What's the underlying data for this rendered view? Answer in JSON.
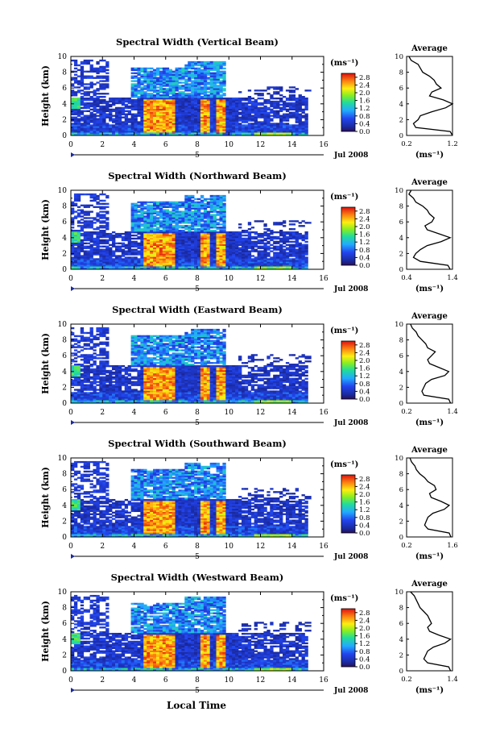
{
  "figure": {
    "xlabel": "Local Time",
    "date_label": "Jul 2008",
    "colorbar_unit": "(ms⁻¹)",
    "colorbar_ticks": [
      "0.0",
      "0.4",
      "0.8",
      "1.2",
      "1.6",
      "2.0",
      "2.4",
      "2.8"
    ],
    "x_ticks": [
      "0",
      "2",
      "4",
      "6",
      "8",
      "10",
      "12",
      "14",
      "16"
    ],
    "y_ticks": [
      "0",
      "2",
      "4",
      "6",
      "8",
      "10"
    ],
    "ylabel": "Height (km)",
    "side_title": "Average",
    "side_xlabel": "(ms⁻¹)",
    "midline_label": "5"
  },
  "chart_data": [
    {
      "type": "heatmap",
      "title": "Spectral Width (Vertical Beam)",
      "xlabel": "",
      "ylabel": "Height (km)",
      "xlim": [
        0,
        16
      ],
      "ylim": [
        0,
        10
      ],
      "colorbar": {
        "min": 0.0,
        "max": 3.0,
        "label": "(ms⁻¹)"
      },
      "profile": {
        "title": "Average",
        "xlabel": "(ms⁻¹)",
        "xlim": [
          0.2,
          1.2
        ],
        "x_ticks": [
          "0.2",
          "1.2"
        ],
        "height_km": [
          0,
          0.5,
          1,
          1.5,
          2,
          2.5,
          3,
          3.5,
          4,
          4.5,
          5,
          5.5,
          6,
          6.5,
          7,
          7.5,
          8,
          8.5,
          9,
          9.5,
          10
        ],
        "width": [
          1.2,
          1.15,
          0.4,
          0.35,
          0.45,
          0.5,
          0.75,
          1.05,
          1.2,
          1.0,
          0.7,
          0.75,
          0.95,
          0.85,
          0.8,
          0.7,
          0.55,
          0.5,
          0.45,
          0.3,
          0.25
        ]
      }
    },
    {
      "type": "heatmap",
      "title": "Spectral Width (Northward Beam)",
      "xlabel": "",
      "ylabel": "Height (km)",
      "xlim": [
        0,
        16
      ],
      "ylim": [
        0,
        10
      ],
      "colorbar": {
        "min": 0.0,
        "max": 3.0,
        "label": "(ms⁻¹)"
      },
      "profile": {
        "title": "Average",
        "xlabel": "(ms⁻¹)",
        "xlim": [
          0.4,
          1.4
        ],
        "x_ticks": [
          "0.4",
          "1.4"
        ],
        "height_km": [
          0,
          0.5,
          1,
          1.5,
          2,
          2.5,
          3,
          3.5,
          4,
          4.5,
          5,
          5.5,
          6,
          6.5,
          7,
          7.5,
          8,
          8.5,
          9,
          9.5,
          10
        ],
        "width": [
          1.35,
          1.3,
          0.7,
          0.55,
          0.6,
          0.7,
          0.85,
          1.15,
          1.35,
          1.1,
          0.85,
          0.8,
          0.95,
          1.0,
          0.9,
          0.85,
          0.75,
          0.6,
          0.55,
          0.45,
          0.5
        ]
      }
    },
    {
      "type": "heatmap",
      "title": "Spectral Width (Eastward Beam)",
      "xlabel": "",
      "ylabel": "Height (km)",
      "xlim": [
        0,
        16
      ],
      "ylim": [
        0,
        10
      ],
      "colorbar": {
        "min": 0.0,
        "max": 3.0,
        "label": "(ms⁻¹)"
      },
      "profile": {
        "title": "Average",
        "xlabel": "(ms⁻¹)",
        "xlim": [
          0.2,
          1.4
        ],
        "x_ticks": [
          "0.2",
          "1.4"
        ],
        "height_km": [
          0,
          0.5,
          1,
          1.5,
          2,
          2.5,
          3,
          3.5,
          4,
          4.5,
          5,
          5.5,
          6,
          6.5,
          7,
          7.5,
          8,
          8.5,
          9,
          9.5,
          10
        ],
        "width": [
          1.35,
          1.3,
          0.65,
          0.6,
          0.65,
          0.7,
          0.85,
          1.2,
          1.3,
          1.05,
          0.8,
          0.75,
          0.85,
          0.95,
          0.75,
          0.7,
          0.6,
          0.5,
          0.45,
          0.35,
          0.3
        ]
      }
    },
    {
      "type": "heatmap",
      "title": "Spectral Width (Southward Beam)",
      "xlabel": "",
      "ylabel": "Height (km)",
      "xlim": [
        0,
        16
      ],
      "ylim": [
        0,
        10
      ],
      "colorbar": {
        "min": 0.0,
        "max": 3.0,
        "label": "(ms⁻¹)"
      },
      "profile": {
        "title": "Average",
        "xlabel": "(ms⁻¹)",
        "xlim": [
          0.2,
          1.6
        ],
        "x_ticks": [
          "0.2",
          "1.6"
        ],
        "height_km": [
          0,
          0.5,
          1,
          1.5,
          2,
          2.5,
          3,
          3.5,
          4,
          4.5,
          5,
          5.5,
          6,
          6.5,
          7,
          7.5,
          8,
          8.5,
          9,
          9.5,
          10
        ],
        "width": [
          1.55,
          1.5,
          0.85,
          0.75,
          0.8,
          0.85,
          1.0,
          1.35,
          1.5,
          1.25,
          0.95,
          0.9,
          1.1,
          1.05,
          0.85,
          0.75,
          0.6,
          0.5,
          0.45,
          0.35,
          0.3
        ]
      }
    },
    {
      "type": "heatmap",
      "title": "Spectral Width (Westward Beam)",
      "xlabel": "Local Time",
      "ylabel": "Height (km)",
      "xlim": [
        0,
        16
      ],
      "ylim": [
        0,
        10
      ],
      "colorbar": {
        "min": 0.0,
        "max": 3.0,
        "label": "(ms⁻¹)"
      },
      "profile": {
        "title": "Average",
        "xlabel": "(ms⁻¹)",
        "xlim": [
          0.2,
          1.4
        ],
        "x_ticks": [
          "0.2",
          "1.4"
        ],
        "height_km": [
          0,
          0.5,
          1,
          1.5,
          2,
          2.5,
          3,
          3.5,
          4,
          4.5,
          5,
          5.5,
          6,
          6.5,
          7,
          7.5,
          8,
          8.5,
          9,
          9.5,
          10
        ],
        "width": [
          1.35,
          1.3,
          0.75,
          0.65,
          0.7,
          0.75,
          0.9,
          1.2,
          1.35,
          1.05,
          0.8,
          0.75,
          0.85,
          0.8,
          0.75,
          0.65,
          0.55,
          0.5,
          0.45,
          0.4,
          0.3
        ]
      }
    }
  ]
}
